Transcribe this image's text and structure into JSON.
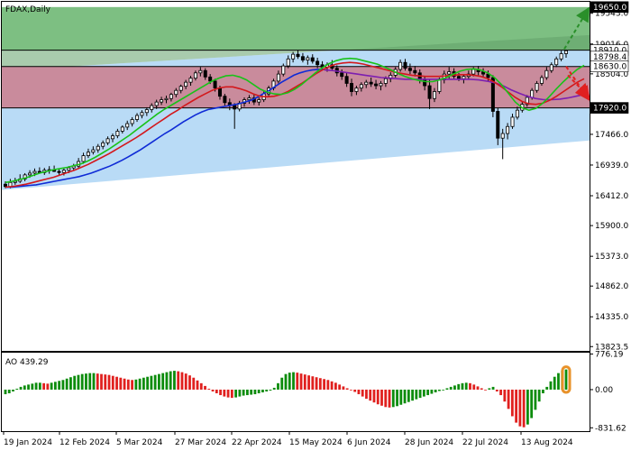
{
  "header": {
    "symbol_label": "FDAX,Daily"
  },
  "indicator": {
    "label": "AO 439.29"
  },
  "colors": {
    "green_zone": "#7dbf82",
    "green_zone_dark": "#62a06a",
    "red_zone": "#c98b9c",
    "blue_zone": "#b9dbf6",
    "blue_zone_dark": "#a6cde9",
    "candle": "#000000",
    "ma_fast": "#19c219",
    "ma_mid": "#d3181c",
    "ma_slow": "#0f2bd6",
    "ma_purple": "#7d1fb0",
    "ao_up": "#0c8c0c",
    "ao_down": "#e0201e",
    "highlight": "#e8922a",
    "arrow_up": "#2a8f2a",
    "arrow_down": "#e02020",
    "tag_bg": "#ffffff",
    "tag_dark_bg": "#000000",
    "tag_dark_fg": "#ffffff"
  },
  "chart_data": [
    {
      "type": "candlestick",
      "title": "FDAX,Daily",
      "y_axis_ticks": [
        "19543.0",
        "19016.0",
        "18504.0",
        "17466.0",
        "16939.0",
        "16412.0",
        "15900.0",
        "15373.0",
        "14862.0",
        "14335.0",
        "13823.5"
      ],
      "y_tick_values": [
        19543,
        19016,
        18504,
        17466,
        16939,
        16412,
        15900,
        15373,
        14862,
        14335,
        13823.5
      ],
      "ylim": [
        13750,
        19740
      ],
      "x_axis_ticks": [
        "19 Jan 2024",
        "12 Feb 2024",
        "5 Mar 2024",
        "27 Mar 2024",
        "22 Apr 2024",
        "15 May 2024",
        "6 Jun 2024",
        "28 Jun 2024",
        "22 Jul 2024",
        "13 Aug 2024"
      ],
      "price_tags": [
        {
          "text": "19650.0",
          "value": 19650,
          "style": "dark"
        },
        {
          "text": "18910.0",
          "value": 18910,
          "style": "light"
        },
        {
          "text": "18798.4",
          "value": 18798.4,
          "style": "light"
        },
        {
          "text": "18630.0",
          "value": 18630,
          "style": "light"
        },
        {
          "text": "17920.0",
          "value": 17920,
          "style": "dark"
        }
      ],
      "levels": [
        {
          "name": "resistance-high",
          "value": 19650
        },
        {
          "name": "resistance",
          "value": 18910
        },
        {
          "name": "pivot",
          "value": 18630
        },
        {
          "name": "support",
          "value": 17920
        }
      ],
      "channel": {
        "lower_start": 16510,
        "lower_end": 17360,
        "upper_start": 18560,
        "upper_end": 19170
      },
      "forecast_arrows": [
        {
          "direction": "up",
          "from": 18930,
          "to": 19600
        },
        {
          "direction": "down",
          "from": 18630,
          "to": 18090
        },
        {
          "direction": "down",
          "from": 18480,
          "to": 18130
        }
      ],
      "candles": [
        [
          16610,
          16660,
          16540,
          16570
        ],
        [
          16570,
          16700,
          16540,
          16640
        ],
        [
          16640,
          16720,
          16600,
          16660
        ],
        [
          16660,
          16780,
          16630,
          16700
        ],
        [
          16700,
          16800,
          16660,
          16770
        ],
        [
          16770,
          16850,
          16720,
          16800
        ],
        [
          16800,
          16880,
          16750,
          16830
        ],
        [
          16830,
          16900,
          16790,
          16810
        ],
        [
          16810,
          16890,
          16770,
          16850
        ],
        [
          16850,
          16920,
          16790,
          16860
        ],
        [
          16860,
          16930,
          16820,
          16830
        ],
        [
          16830,
          16880,
          16770,
          16810
        ],
        [
          16810,
          16880,
          16760,
          16850
        ],
        [
          16850,
          16920,
          16800,
          16890
        ],
        [
          16890,
          16960,
          16840,
          16920
        ],
        [
          16920,
          17060,
          16880,
          17000
        ],
        [
          17000,
          17150,
          16960,
          17100
        ],
        [
          17100,
          17220,
          17060,
          17160
        ],
        [
          17160,
          17260,
          17120,
          17200
        ],
        [
          17200,
          17300,
          17150,
          17260
        ],
        [
          17260,
          17360,
          17210,
          17320
        ],
        [
          17320,
          17430,
          17280,
          17390
        ],
        [
          17390,
          17480,
          17330,
          17440
        ],
        [
          17440,
          17560,
          17400,
          17520
        ],
        [
          17520,
          17620,
          17480,
          17590
        ],
        [
          17590,
          17700,
          17540,
          17650
        ],
        [
          17650,
          17760,
          17600,
          17720
        ],
        [
          17720,
          17830,
          17680,
          17790
        ],
        [
          17790,
          17880,
          17740,
          17840
        ],
        [
          17840,
          17930,
          17780,
          17890
        ],
        [
          17890,
          18000,
          17840,
          17960
        ],
        [
          17960,
          18060,
          17900,
          18020
        ],
        [
          18020,
          18110,
          17970,
          18060
        ],
        [
          18060,
          18130,
          18000,
          18080
        ],
        [
          18080,
          18180,
          18030,
          18150
        ],
        [
          18150,
          18260,
          18100,
          18220
        ],
        [
          18220,
          18320,
          18170,
          18290
        ],
        [
          18290,
          18400,
          18240,
          18360
        ],
        [
          18360,
          18470,
          18300,
          18430
        ],
        [
          18430,
          18560,
          18390,
          18520
        ],
        [
          18520,
          18620,
          18460,
          18560
        ],
        [
          18560,
          18600,
          18400,
          18450
        ],
        [
          18450,
          18500,
          18330,
          18380
        ],
        [
          18380,
          18420,
          18200,
          18260
        ],
        [
          18260,
          18300,
          18060,
          18120
        ],
        [
          18120,
          18160,
          17960,
          18010
        ],
        [
          18010,
          18080,
          17880,
          17960
        ],
        [
          17960,
          18000,
          17560,
          17900
        ],
        [
          17900,
          18040,
          17860,
          18000
        ],
        [
          18000,
          18100,
          17940,
          18060
        ],
        [
          18060,
          18140,
          17990,
          18090
        ],
        [
          18090,
          18160,
          17970,
          18020
        ],
        [
          18020,
          18100,
          17960,
          18060
        ],
        [
          18060,
          18200,
          18020,
          18160
        ],
        [
          18160,
          18300,
          18110,
          18260
        ],
        [
          18260,
          18420,
          18220,
          18380
        ],
        [
          18380,
          18560,
          18340,
          18500
        ],
        [
          18500,
          18680,
          18460,
          18640
        ],
        [
          18640,
          18820,
          18600,
          18760
        ],
        [
          18760,
          18880,
          18700,
          18840
        ],
        [
          18840,
          18910,
          18760,
          18800
        ],
        [
          18800,
          18860,
          18700,
          18740
        ],
        [
          18740,
          18820,
          18660,
          18780
        ],
        [
          18780,
          18840,
          18680,
          18720
        ],
        [
          18720,
          18780,
          18600,
          18660
        ],
        [
          18660,
          18720,
          18560,
          18620
        ],
        [
          18620,
          18700,
          18540,
          18660
        ],
        [
          18660,
          18740,
          18560,
          18600
        ],
        [
          18600,
          18650,
          18460,
          18520
        ],
        [
          18520,
          18580,
          18400,
          18460
        ],
        [
          18460,
          18520,
          18280,
          18340
        ],
        [
          18340,
          18420,
          18120,
          18200
        ],
        [
          18200,
          18300,
          18140,
          18260
        ],
        [
          18260,
          18360,
          18200,
          18320
        ],
        [
          18320,
          18400,
          18260,
          18360
        ],
        [
          18360,
          18440,
          18280,
          18330
        ],
        [
          18330,
          18400,
          18240,
          18300
        ],
        [
          18300,
          18380,
          18220,
          18340
        ],
        [
          18340,
          18460,
          18280,
          18420
        ],
        [
          18420,
          18530,
          18360,
          18480
        ],
        [
          18480,
          18620,
          18440,
          18580
        ],
        [
          18580,
          18750,
          18540,
          18700
        ],
        [
          18700,
          18760,
          18560,
          18600
        ],
        [
          18600,
          18680,
          18500,
          18560
        ],
        [
          18560,
          18640,
          18460,
          18520
        ],
        [
          18520,
          18580,
          18340,
          18400
        ],
        [
          18400,
          18460,
          18220,
          18300
        ],
        [
          18300,
          18400,
          17900,
          18080
        ],
        [
          18080,
          18260,
          18020,
          18200
        ],
        [
          18200,
          18440,
          18160,
          18400
        ],
        [
          18400,
          18560,
          18340,
          18500
        ],
        [
          18500,
          18620,
          18420,
          18540
        ],
        [
          18540,
          18600,
          18420,
          18460
        ],
        [
          18460,
          18520,
          18380,
          18420
        ],
        [
          18420,
          18500,
          18340,
          18460
        ],
        [
          18460,
          18560,
          18400,
          18500
        ],
        [
          18500,
          18620,
          18460,
          18580
        ],
        [
          18580,
          18640,
          18480,
          18540
        ],
        [
          18540,
          18600,
          18440,
          18500
        ],
        [
          18500,
          18560,
          18380,
          18440
        ],
        [
          18440,
          18480,
          17760,
          17860
        ],
        [
          17860,
          17920,
          17280,
          17400
        ],
        [
          17400,
          17560,
          17040,
          17480
        ],
        [
          17480,
          17660,
          17380,
          17600
        ],
        [
          17600,
          17820,
          17560,
          17760
        ],
        [
          17760,
          17940,
          17720,
          17880
        ],
        [
          17880,
          18020,
          17840,
          17980
        ],
        [
          17980,
          18140,
          17940,
          18100
        ],
        [
          18100,
          18260,
          18060,
          18220
        ],
        [
          18220,
          18380,
          18180,
          18340
        ],
        [
          18340,
          18480,
          18300,
          18440
        ],
        [
          18440,
          18620,
          18400,
          18560
        ],
        [
          18560,
          18700,
          18520,
          18660
        ],
        [
          18660,
          18800,
          18620,
          18760
        ],
        [
          18760,
          18900,
          18720,
          18850
        ],
        [
          18850,
          18920,
          18780,
          18900
        ]
      ],
      "ma_fast": [
        16640,
        16660,
        16690,
        16720,
        16760,
        16800,
        16830,
        16860,
        16880,
        16900,
        16930,
        16960,
        17010,
        17070,
        17140,
        17210,
        17290,
        17370,
        17450,
        17540,
        17630,
        17720,
        17810,
        17890,
        17960,
        18030,
        18100,
        18170,
        18240,
        18310,
        18380,
        18430,
        18470,
        18480,
        18450,
        18400,
        18320,
        18240,
        18190,
        18160,
        18150,
        18180,
        18240,
        18320,
        18420,
        18520,
        18610,
        18680,
        18730,
        18760,
        18770,
        18760,
        18730,
        18700,
        18670,
        18620,
        18570,
        18510,
        18460,
        18420,
        18390,
        18370,
        18370,
        18400,
        18440,
        18500,
        18550,
        18580,
        18590,
        18570,
        18520,
        18440,
        18320,
        18170,
        18020,
        17920,
        17880,
        17910,
        18000,
        18120,
        18250,
        18370,
        18480,
        18580,
        18650
      ],
      "ma_mid": [
        16560,
        16570,
        16590,
        16610,
        16640,
        16670,
        16700,
        16730,
        16770,
        16810,
        16850,
        16900,
        16950,
        17010,
        17070,
        17130,
        17200,
        17270,
        17340,
        17410,
        17490,
        17570,
        17650,
        17730,
        17810,
        17880,
        17960,
        18030,
        18100,
        18160,
        18220,
        18260,
        18280,
        18280,
        18250,
        18210,
        18160,
        18120,
        18110,
        18120,
        18150,
        18200,
        18270,
        18340,
        18420,
        18500,
        18570,
        18630,
        18670,
        18690,
        18700,
        18690,
        18670,
        18640,
        18610,
        18580,
        18550,
        18520,
        18500,
        18480,
        18470,
        18460,
        18460,
        18460,
        18470,
        18480,
        18490,
        18490,
        18480,
        18460,
        18420,
        18360,
        18280,
        18190,
        18100,
        18030,
        17990,
        17980,
        18000,
        18050,
        18120,
        18200,
        18280,
        18360,
        18420
      ],
      "ma_slow": [
        16560,
        16560,
        16570,
        16580,
        16590,
        16600,
        16620,
        16640,
        16660,
        16680,
        16700,
        16720,
        16740,
        16770,
        16800,
        16840,
        16880,
        16920,
        16970,
        17020,
        17080,
        17140,
        17200,
        17270,
        17340,
        17410,
        17480,
        17540,
        17610,
        17680,
        17740,
        17800,
        17850,
        17890,
        17910,
        17930,
        17950,
        17970,
        17990,
        18020,
        18050,
        18100,
        18160,
        18220,
        18290,
        18360,
        18420,
        18480,
        18520,
        18550,
        18570,
        18580,
        18580
      ],
      "ma_purple": [
        18570,
        18560,
        18540,
        18520,
        18500,
        18480,
        18460,
        18440,
        18430,
        18420,
        18410,
        18410,
        18410,
        18410,
        18410,
        18410,
        18410,
        18410,
        18410,
        18400,
        18380,
        18350,
        18300,
        18230,
        18170,
        18120,
        18080,
        18060,
        18060,
        18070,
        18090,
        18120,
        18150
      ],
      "ao_values": [
        -100,
        -80,
        -40,
        20,
        60,
        90,
        110,
        130,
        150,
        150,
        140,
        130,
        150,
        170,
        190,
        210,
        240,
        270,
        300,
        320,
        340,
        350,
        360,
        360,
        350,
        340,
        330,
        320,
        300,
        280,
        260,
        240,
        220,
        210,
        220,
        240,
        260,
        280,
        300,
        320,
        340,
        360,
        380,
        400,
        410,
        400,
        380,
        350,
        310,
        260,
        200,
        140,
        80,
        20,
        -40,
        -80,
        -120,
        -150,
        -170,
        -180,
        -170,
        -150,
        -130,
        -120,
        -110,
        -100,
        -80,
        -60,
        -40,
        -20,
        40,
        140,
        260,
        340,
        370,
        380,
        370,
        350,
        330,
        310,
        290,
        270,
        250,
        230,
        210,
        180,
        150,
        110,
        70,
        30,
        -10,
        -50,
        -100,
        -150,
        -200,
        -240,
        -280,
        -320,
        -350,
        -380,
        -390,
        -380,
        -360,
        -330,
        -300,
        -270,
        -240,
        -210,
        -180,
        -150,
        -120,
        -90,
        -60,
        -30,
        0,
        30,
        60,
        90,
        120,
        140,
        150,
        140,
        110,
        70,
        30,
        -10,
        30,
        60,
        -40,
        -120,
        -260,
        -420,
        -580,
        -720,
        -800,
        -820,
        -760,
        -620,
        -440,
        -260,
        -80,
        60,
        180,
        280,
        360,
        420,
        439.29
      ],
      "ao_axis_ticks": [
        "776.19",
        "0.00",
        "-831.62"
      ],
      "ao_ylim": [
        -905,
        805
      ]
    }
  ]
}
